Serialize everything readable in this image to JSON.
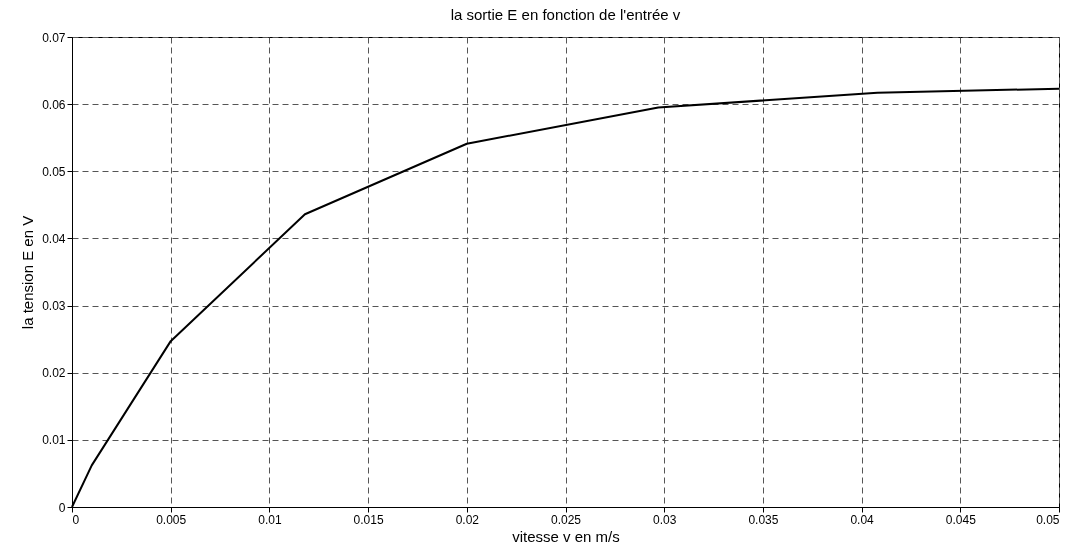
{
  "chart_data": {
    "type": "line",
    "title": "la sortie E en fonction de l'entrée v",
    "xlabel": "vitesse v en m/s",
    "ylabel": "la tension E en V",
    "x": [
      0,
      0.001,
      0.005,
      0.0118,
      0.02,
      0.0297,
      0.0408,
      0.05
    ],
    "series": [
      {
        "color": "#000000",
        "values": [
          0,
          0.0062,
          0.0247,
          0.0436,
          0.0541,
          0.0595,
          0.0617,
          0.0623
        ]
      }
    ],
    "xlim": [
      0,
      0.05
    ],
    "xticks": [
      0,
      0.005,
      0.01,
      0.015,
      0.02,
      0.025,
      0.03,
      0.035,
      0.04,
      0.045,
      0.05
    ],
    "ylim": [
      0,
      0.07
    ],
    "yticks": [
      0,
      0.01,
      0.02,
      0.03,
      0.04,
      0.05,
      0.06,
      0.07
    ],
    "grid": true,
    "line_style": "solid",
    "marker": "none"
  }
}
